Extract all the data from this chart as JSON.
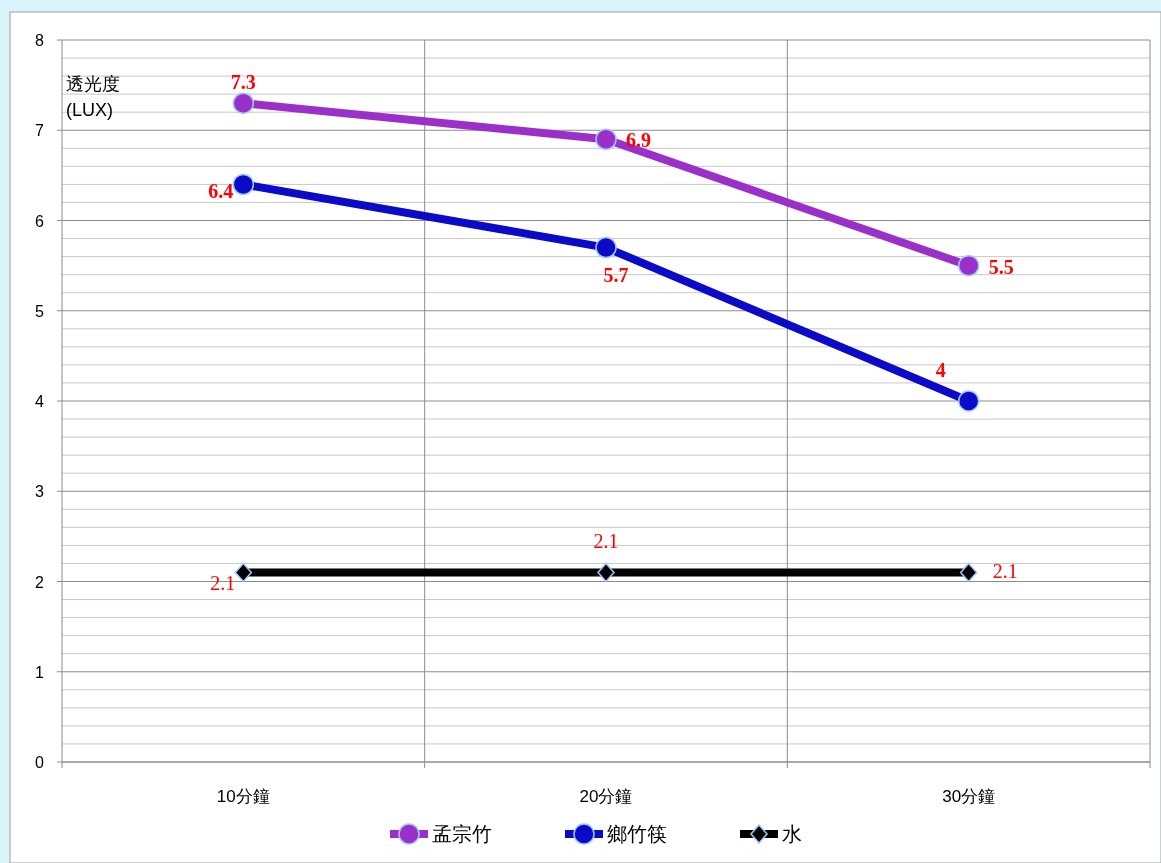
{
  "chart_data": {
    "type": "line",
    "ylabel": "透光度\n(LUX)",
    "categories": [
      "10分鐘",
      "20分鐘",
      "30分鐘"
    ],
    "series": [
      {
        "name": "孟宗竹",
        "color": "#9b2fc9",
        "marker": "circle",
        "values": [
          7.3,
          6.9,
          5.5
        ]
      },
      {
        "name": "鄉竹筷",
        "color": "#0a0ac8",
        "marker": "circle",
        "values": [
          6.4,
          5.7,
          4
        ]
      },
      {
        "name": "水",
        "color": "#000000",
        "marker": "diamond",
        "values": [
          2.1,
          2.1,
          2.1
        ]
      }
    ],
    "ylim": [
      0,
      8
    ],
    "yticks": [
      0,
      1,
      2,
      3,
      4,
      5,
      6,
      7,
      8
    ],
    "grid": true,
    "legend": "bottom",
    "data_labels": true
  }
}
